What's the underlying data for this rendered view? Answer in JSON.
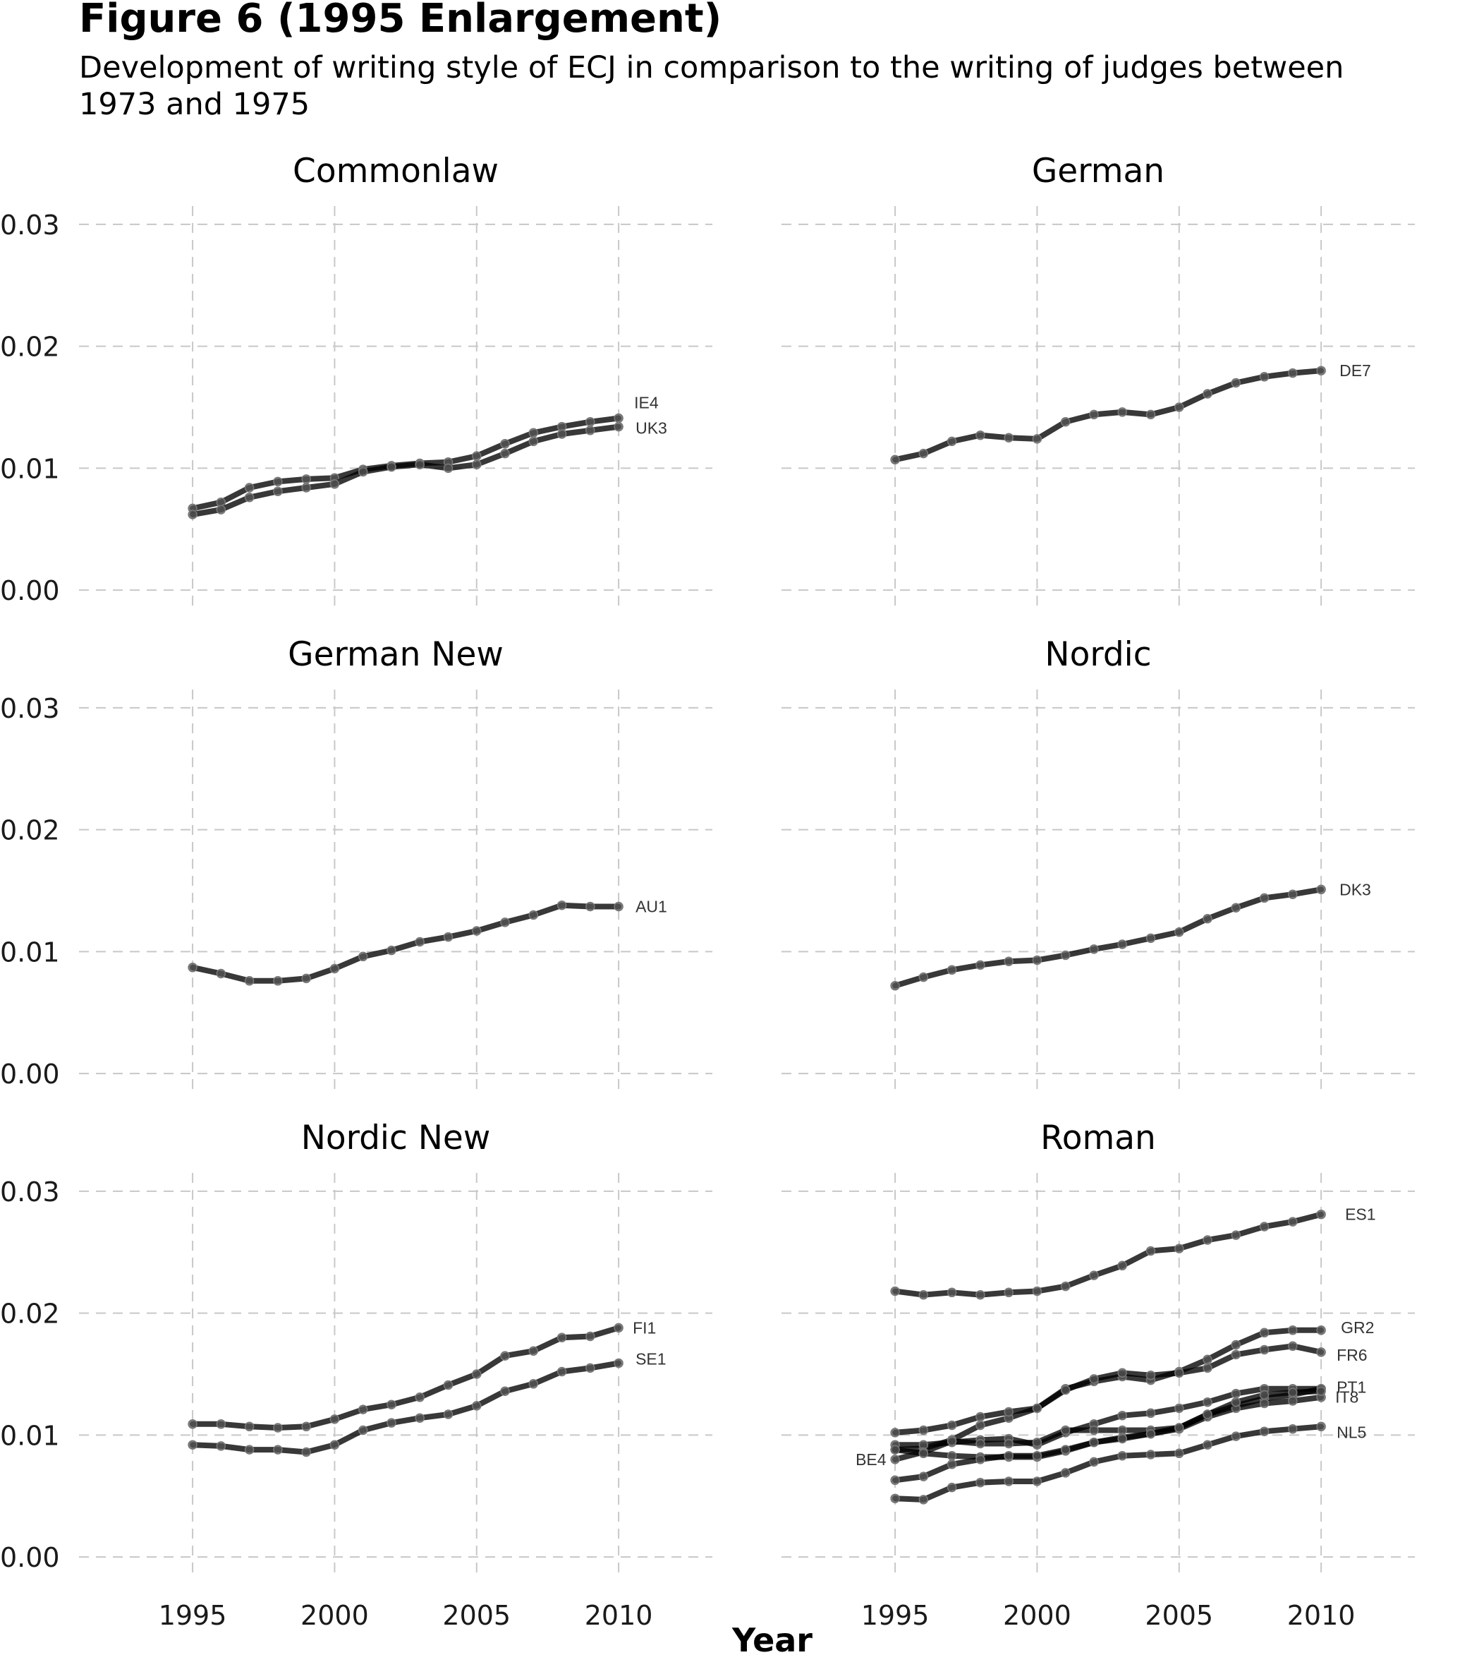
{
  "page": {
    "title": "Figure 6 (1995 Enlargement)",
    "subtitle": "Development of writing style of ECJ in comparison to the writing of judges between 1973 and 1975"
  },
  "chart_data": {
    "type": "line",
    "xlabel": "Year",
    "ylabel": "",
    "xlim": [
      1991,
      2013.3
    ],
    "ylim": [
      -0.0015,
      0.0315
    ],
    "x_ticks": [
      1995,
      2000,
      2005,
      2010
    ],
    "y_ticks": [
      0.0,
      0.01,
      0.02,
      0.03
    ],
    "y_tick_labels": [
      "0.00",
      "0.01",
      "0.02",
      "0.03"
    ],
    "grid": true,
    "legend": "none (series labelled at line ends)",
    "line_color": "#000000",
    "grid_color": "#c8c8c8",
    "x": [
      1995,
      1996,
      1997,
      1998,
      1999,
      2000,
      2001,
      2002,
      2003,
      2004,
      2005,
      2006,
      2007,
      2008,
      2009,
      2010
    ],
    "panels": [
      {
        "title": "Commonlaw",
        "series": [
          {
            "name": "IE4",
            "values": [
              0.0067,
              0.0072,
              0.0084,
              0.0089,
              0.0091,
              0.0092,
              0.0099,
              0.0102,
              0.0104,
              0.0105,
              0.011,
              0.012,
              0.0129,
              0.0134,
              0.0138,
              0.0141
            ]
          },
          {
            "name": "UK3",
            "values": [
              0.0062,
              0.0066,
              0.0076,
              0.0081,
              0.0084,
              0.0087,
              0.0097,
              0.0101,
              0.0103,
              0.01,
              0.0103,
              0.0112,
              0.0122,
              0.0128,
              0.0131,
              0.0134
            ]
          }
        ]
      },
      {
        "title": "German",
        "series": [
          {
            "name": "DE7",
            "values": [
              0.0107,
              0.0112,
              0.0122,
              0.0127,
              0.0125,
              0.0124,
              0.0138,
              0.0144,
              0.0146,
              0.0144,
              0.015,
              0.0161,
              0.017,
              0.0175,
              0.0178,
              0.018
            ]
          }
        ]
      },
      {
        "title": "German New",
        "series": [
          {
            "name": "AU1",
            "values": [
              0.0087,
              0.0082,
              0.0076,
              0.0076,
              0.0078,
              0.0086,
              0.0096,
              0.0101,
              0.0108,
              0.0112,
              0.0117,
              0.0124,
              0.013,
              0.0138,
              0.0137,
              0.0137
            ]
          }
        ]
      },
      {
        "title": "Nordic",
        "series": [
          {
            "name": "DK3",
            "values": [
              0.0072,
              0.0079,
              0.0085,
              0.0089,
              0.0092,
              0.0093,
              0.0097,
              0.0102,
              0.0106,
              0.0111,
              0.0116,
              0.0127,
              0.0136,
              0.0144,
              0.0147,
              0.0151
            ]
          }
        ]
      },
      {
        "title": "Nordic New",
        "series": [
          {
            "name": "FI1",
            "values": [
              0.0109,
              0.0109,
              0.0107,
              0.0106,
              0.0107,
              0.0113,
              0.0121,
              0.0125,
              0.0131,
              0.0141,
              0.015,
              0.0165,
              0.0169,
              0.018,
              0.0181,
              0.0188
            ]
          },
          {
            "name": "SE1",
            "values": [
              0.0092,
              0.0091,
              0.0088,
              0.0088,
              0.0086,
              0.0092,
              0.0104,
              0.011,
              0.0114,
              0.0117,
              0.0124,
              0.0136,
              0.0142,
              0.0152,
              0.0155,
              0.0159
            ]
          }
        ]
      },
      {
        "title": "Roman",
        "series": [
          {
            "name": "ES1",
            "values": [
              0.0218,
              0.0215,
              0.0217,
              0.0215,
              0.0217,
              0.0218,
              0.0222,
              0.0231,
              0.0239,
              0.0251,
              0.0253,
              0.026,
              0.0264,
              0.0271,
              0.0275,
              0.0281
            ]
          },
          {
            "name": "GR2",
            "values": [
              0.0088,
              0.0089,
              0.0096,
              0.0108,
              0.0114,
              0.0122,
              0.0138,
              0.0144,
              0.0148,
              0.0145,
              0.0152,
              0.0162,
              0.0174,
              0.0184,
              0.0186,
              0.0186
            ]
          },
          {
            "name": "IT8",
            "values": [
              0.0092,
              0.0092,
              0.0094,
              0.0096,
              0.0097,
              0.0092,
              0.0102,
              0.0109,
              0.0116,
              0.0118,
              0.0122,
              0.0127,
              0.0134,
              0.0138,
              0.0138,
              0.0138
            ]
          },
          {
            "name": "FR6",
            "values": [
              0.0102,
              0.0104,
              0.0108,
              0.0115,
              0.0119,
              0.0122,
              0.0137,
              0.0146,
              0.0151,
              0.0149,
              0.0151,
              0.0155,
              0.0166,
              0.017,
              0.0173,
              0.0168
            ]
          },
          {
            "name": "PT1",
            "values": [
              0.008,
              0.0086,
              0.0095,
              0.0093,
              0.0093,
              0.0094,
              0.0104,
              0.0104,
              0.0104,
              0.0104,
              0.0106,
              0.0117,
              0.0124,
              0.013,
              0.0133,
              0.0138
            ]
          },
          {
            "name": "BE4",
            "values": [
              0.0088,
              0.0085,
              0.0083,
              0.0082,
              0.0082,
              0.0082,
              0.0087,
              0.0094,
              0.0098,
              0.0101,
              0.0105,
              0.0115,
              0.0122,
              0.0126,
              0.0128,
              0.0131
            ]
          },
          {
            "name": "NL5",
            "values": [
              0.0048,
              0.0047,
              0.0057,
              0.0061,
              0.0062,
              0.0062,
              0.0069,
              0.0078,
              0.0083,
              0.0084,
              0.0085,
              0.0092,
              0.0099,
              0.0103,
              0.0105,
              0.0107
            ]
          },
          {
            "name": "",
            "values": [
              0.0063,
              0.0066,
              0.0076,
              0.008,
              0.0083,
              0.0083,
              0.0088,
              0.0094,
              0.0097,
              0.0101,
              0.0106,
              0.0117,
              0.0127,
              0.0133,
              0.0135,
              0.0136
            ]
          }
        ]
      }
    ]
  }
}
